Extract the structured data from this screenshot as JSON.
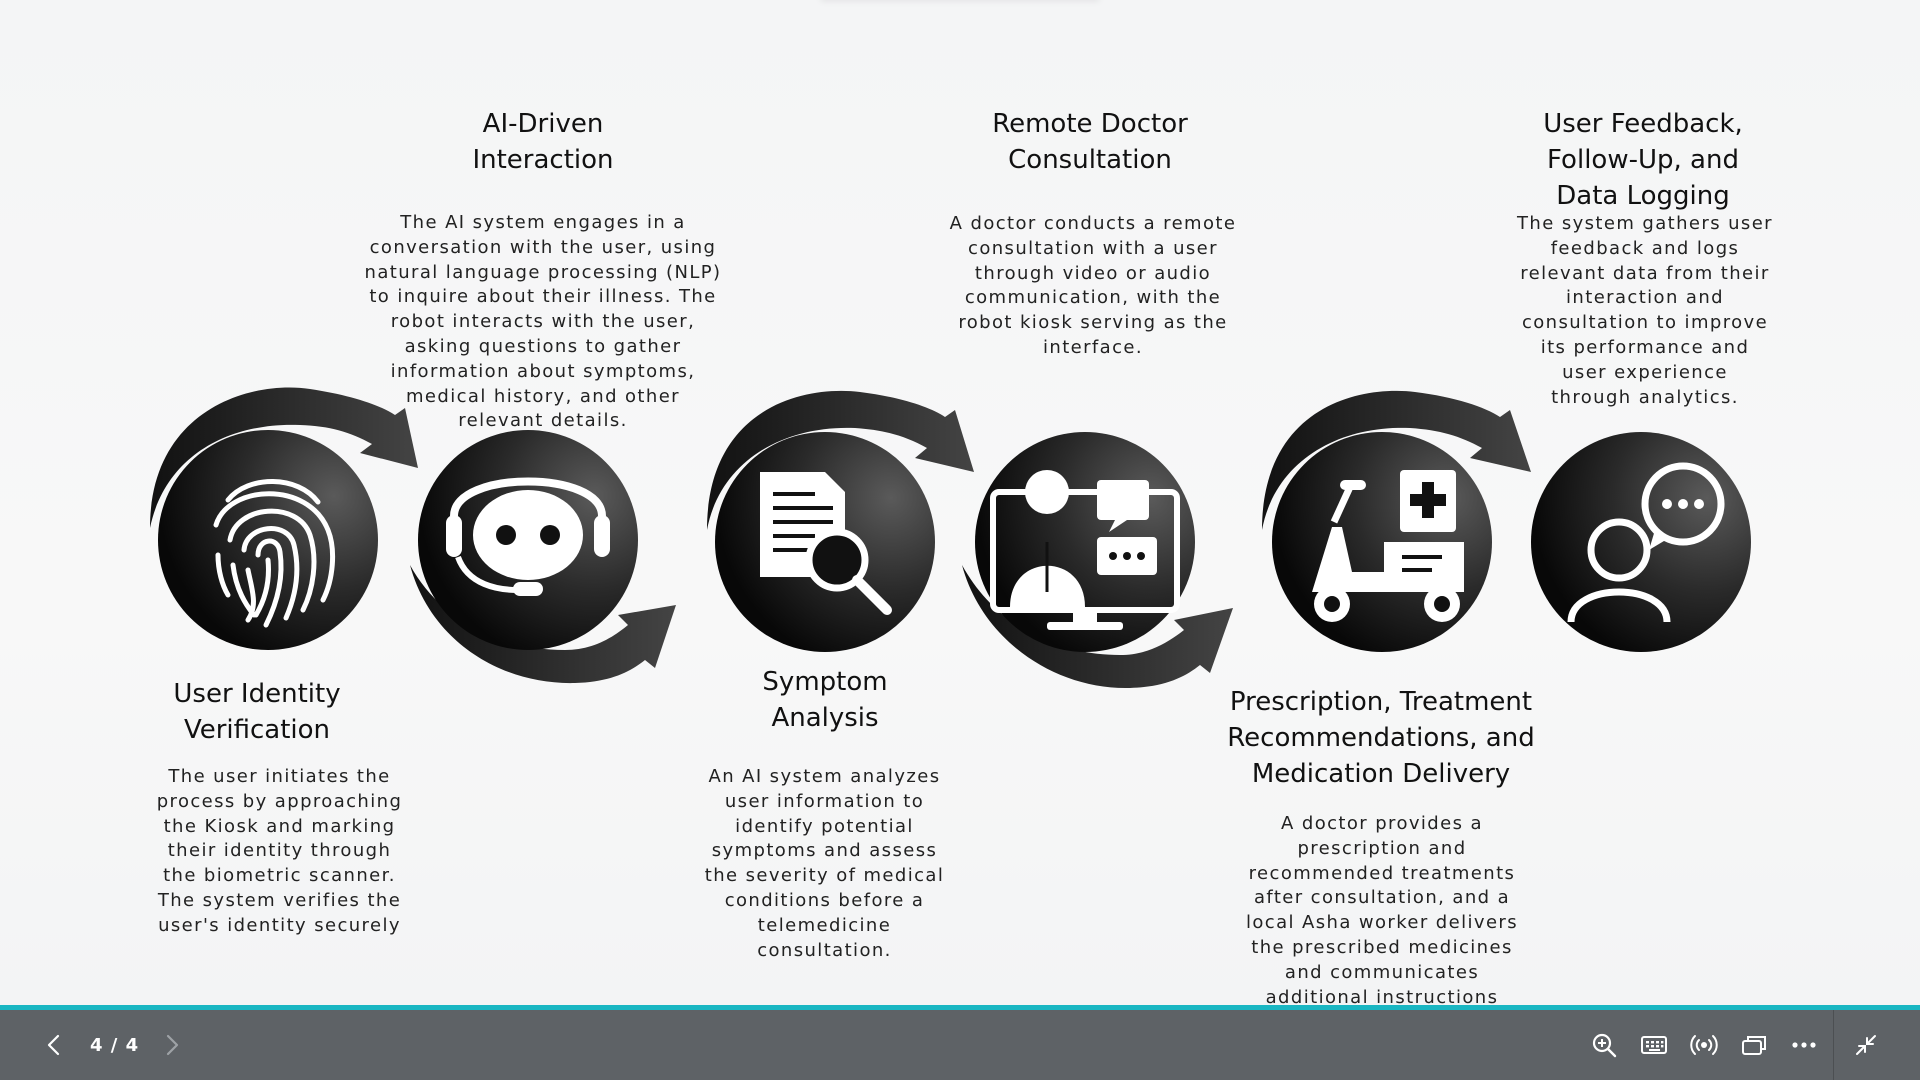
{
  "slide": {
    "steps": [
      {
        "heading": "User Identity\nVerification",
        "description": "The user initiates the\nprocess by approaching\nthe Kiosk and marking\ntheir identity through\nthe biometric scanner.\nThe system verifies the\nuser's identity securely",
        "icon": "fingerprint-icon"
      },
      {
        "heading": "AI-Driven\nInteraction",
        "description": "The AI system engages in a\nconversation with the user, using\nnatural language processing (NLP)\nto inquire about their illness. The\nrobot interacts with the user,\nasking questions to gather\ninformation about symptoms,\nmedical history, and other\nrelevant details.",
        "icon": "chatbot-headset-icon"
      },
      {
        "heading": "Symptom\nAnalysis",
        "description": "An AI system analyzes\nuser information to\nidentify potential\nsymptoms and assess\nthe severity of medical\nconditions before a\ntelemedicine\nconsultation.",
        "icon": "document-magnifier-icon"
      },
      {
        "heading": "Remote Doctor\nConsultation",
        "description": "A doctor conducts a remote\nconsultation with a user\nthrough video or audio\ncommunication, with the\nrobot kiosk serving as the\ninterface.",
        "icon": "doctor-monitor-icon"
      },
      {
        "heading": "Prescription, Treatment\nRecommendations, and\nMedication Delivery",
        "description": "A doctor provides a\nprescription and\nrecommended treatments\nafter consultation, and a\nlocal Asha worker delivers\nthe prescribed medicines\nand communicates\nadditional instructions\nthrough the Kiosk.",
        "icon": "delivery-scooter-icon"
      },
      {
        "heading": "User Feedback,\nFollow-Up, and\nData Logging",
        "description": "The system gathers user\nfeedback and logs\nrelevant data from their\ninteraction and\nconsultation to improve\nits performance and\nuser experience\nthrough analytics.",
        "icon": "user-feedback-icon"
      }
    ]
  },
  "toolbar": {
    "page_counter": "4 / 4",
    "progress_fraction": 1.0,
    "accent_color": "#19b6c2",
    "icons": [
      "chevron-left-icon",
      "chevron-right-icon",
      "zoom-in-icon",
      "keyboard-icon",
      "broadcast-icon",
      "present-screen-icon",
      "more-icon",
      "exit-fullscreen-icon"
    ]
  }
}
